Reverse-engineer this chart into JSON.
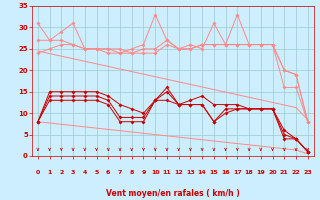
{
  "x": [
    0,
    1,
    2,
    3,
    4,
    5,
    6,
    7,
    8,
    9,
    10,
    11,
    12,
    13,
    14,
    15,
    16,
    17,
    18,
    19,
    20,
    21,
    22,
    23
  ],
  "line_rafale1": [
    31,
    27,
    29,
    31,
    25,
    25,
    25,
    24,
    25,
    26,
    33,
    27,
    25,
    26,
    25,
    31,
    26,
    33,
    26,
    26,
    26,
    20,
    19,
    8
  ],
  "line_rafale2": [
    27,
    27,
    27,
    26,
    25,
    25,
    25,
    25,
    24,
    25,
    25,
    27,
    25,
    25,
    26,
    26,
    26,
    26,
    26,
    26,
    26,
    16,
    16,
    8
  ],
  "line_rafale3": [
    24,
    25,
    26,
    26,
    25,
    25,
    24,
    24,
    24,
    24,
    24,
    26,
    25,
    25,
    26,
    26,
    26,
    26,
    26,
    26,
    26,
    20,
    19,
    8
  ],
  "line_trend_high": [
    24.5,
    23.9,
    23.3,
    22.7,
    22.1,
    21.5,
    20.9,
    20.3,
    19.7,
    19.1,
    18.5,
    17.9,
    17.3,
    16.7,
    16.1,
    15.5,
    14.9,
    14.3,
    13.7,
    13.1,
    12.5,
    11.9,
    11.3,
    8.5
  ],
  "line_trend_low": [
    8.0,
    7.7,
    7.4,
    7.1,
    6.8,
    6.5,
    6.2,
    5.9,
    5.6,
    5.3,
    5.0,
    4.7,
    4.4,
    4.1,
    3.8,
    3.5,
    3.2,
    2.9,
    2.6,
    2.3,
    2.0,
    1.7,
    1.4,
    0.5
  ],
  "line_mean1": [
    8,
    15,
    15,
    15,
    15,
    15,
    14,
    12,
    11,
    10,
    13,
    16,
    12,
    13,
    14,
    12,
    12,
    12,
    11,
    11,
    11,
    6,
    4,
    1
  ],
  "line_mean2": [
    8,
    14,
    14,
    14,
    14,
    14,
    13,
    9,
    9,
    9,
    13,
    15,
    12,
    12,
    12,
    8,
    11,
    11,
    11,
    11,
    11,
    5,
    4,
    1
  ],
  "line_mean3": [
    8,
    13,
    13,
    13,
    13,
    13,
    12,
    8,
    8,
    8,
    13,
    13,
    12,
    12,
    12,
    8,
    10,
    11,
    11,
    11,
    11,
    4,
    4,
    1
  ],
  "bg_color": "#cceeff",
  "grid_color": "#99cccc",
  "line_color_light": "#ff8888",
  "line_color_dark": "#cc0000",
  "xlabel": "Vent moyen/en rafales ( km/h )",
  "ylim": [
    0,
    35
  ],
  "xlim": [
    -0.5,
    23.5
  ],
  "yticks": [
    0,
    5,
    10,
    15,
    20,
    25,
    30,
    35
  ],
  "xticks": [
    0,
    1,
    2,
    3,
    4,
    5,
    6,
    7,
    8,
    9,
    10,
    11,
    12,
    13,
    14,
    15,
    16,
    17,
    18,
    19,
    20,
    21,
    22,
    23
  ]
}
